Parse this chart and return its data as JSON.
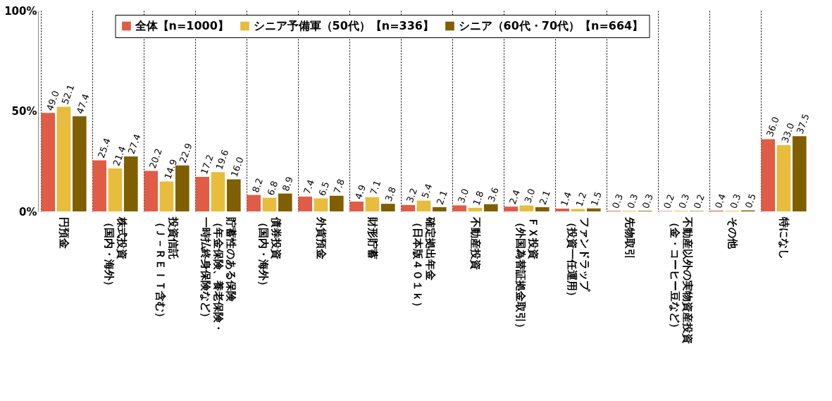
{
  "chart_data": {
    "type": "bar",
    "categories": [
      "円預金",
      "株式投資（国内・海外）",
      "投資信託（Ｊ－ＲＥＩＴ含む）",
      "貯蓄性のある保険（年金保険、養老保険・一時払終身保険など）",
      "債券投資（国内・海外）",
      "外貨預金",
      "財形貯蓄",
      "確定拠出年金（日本版４０１ｋ）",
      "不動産投資",
      "ＦＸ投資（外国為替証拠金取引）",
      "ファンドラップ（投資一任運用）",
      "先物取引",
      "不動産以外の実物資産投資（金・コーヒー豆など）",
      "その他",
      "特になし"
    ],
    "series": [
      {
        "name": "全体【n=1000】",
        "color": "#e05c46",
        "values": [
          49.0,
          25.4,
          20.2,
          17.2,
          8.2,
          7.4,
          4.9,
          3.2,
          3.0,
          2.4,
          1.4,
          0.3,
          0.2,
          0.4,
          36.0
        ],
        "value_labels": [
          "49.0",
          "25.4",
          "20.2",
          "17.2",
          "8.2",
          "7.4",
          "4.9",
          "3.2",
          "3.0",
          "2.4",
          "1.4",
          "0.3",
          "0.2",
          "0.4",
          "36.0"
        ]
      },
      {
        "name": "シニア予備軍（50代）【n=336】",
        "color": "#e8bc3c",
        "values": [
          52.1,
          21.4,
          14.9,
          19.6,
          6.8,
          6.5,
          7.1,
          5.4,
          1.8,
          3.0,
          1.2,
          0.3,
          0.3,
          0.3,
          33.0
        ],
        "value_labels": [
          "52.1",
          "21.4",
          "14.9",
          "19.6",
          "6.8",
          "6.5",
          "7.1",
          "5.4",
          "1.8",
          "3.0",
          "1.2",
          "0.3",
          "0.3",
          "0.3",
          "33.0"
        ]
      },
      {
        "name": "シニア（60代・70代）【n=664】",
        "color": "#7f5f00",
        "values": [
          47.4,
          27.4,
          22.9,
          16.0,
          8.9,
          7.8,
          3.8,
          2.1,
          3.6,
          2.1,
          1.5,
          0.3,
          0.2,
          0.5,
          37.5
        ],
        "value_labels": [
          "47.4",
          "27.4",
          "22.9",
          "16.0",
          "8.9",
          "7.8",
          "3.8",
          "2.1",
          "3.6",
          "2.1",
          "1.5",
          "0.3",
          "0.2",
          "0.5",
          "37.5"
        ]
      }
    ],
    "ylim": [
      0,
      100
    ],
    "yticks": [
      {
        "value": 0,
        "label": "0%"
      },
      {
        "value": 50,
        "label": "50%"
      },
      {
        "value": 100,
        "label": "100%"
      }
    ],
    "grid": "x",
    "legend": "top"
  }
}
